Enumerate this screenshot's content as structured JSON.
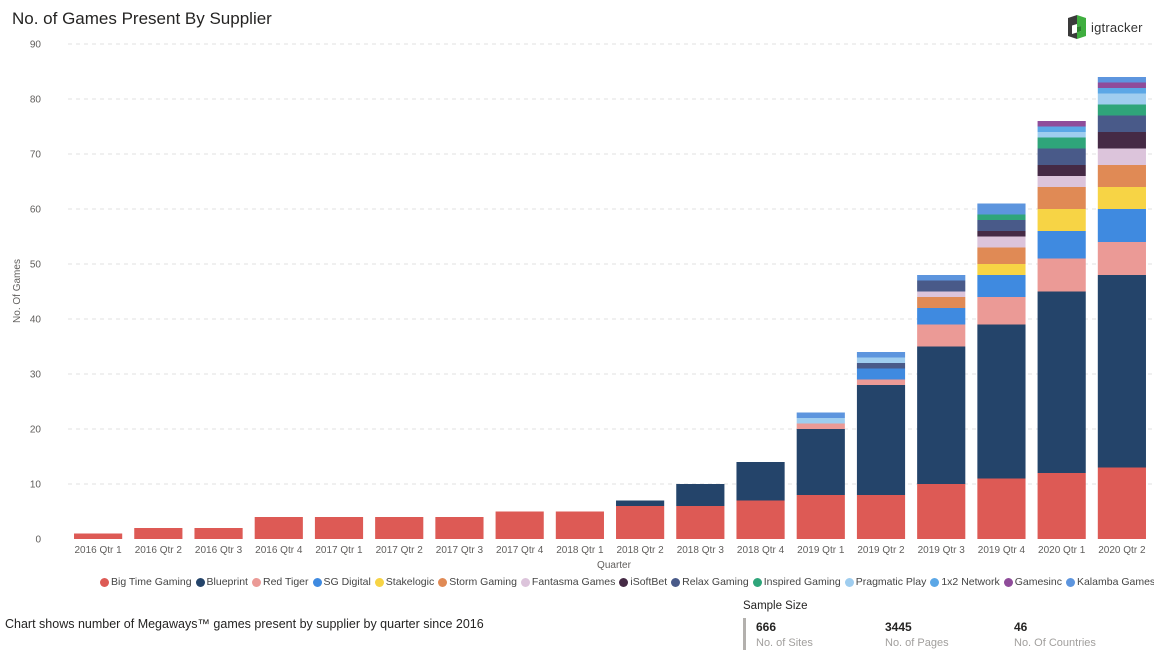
{
  "title": "No. of Games Present By Supplier",
  "logo": {
    "text": "igtracker",
    "icon": "igtracker-logo-icon"
  },
  "footnote": "Chart shows number of Megaways™  games present by supplier by quarter since 2016",
  "sample": {
    "title": "Sample Size",
    "stats": [
      {
        "value": "666",
        "label": "No. of Sites"
      },
      {
        "value": "3445",
        "label": "No. of Pages"
      },
      {
        "value": "46",
        "label": "No. Of Countries"
      }
    ]
  },
  "colors": {
    "Big Time Gaming": "#dd5a55",
    "Blueprint": "#24446a",
    "Red Tiger": "#eb9a96",
    "SG Digital": "#3f8ae0",
    "Stakelogic": "#f7d445",
    "Storm Gaming": "#e08a55",
    "Fantasma Games": "#dcc4db",
    "iSoftBet": "#452a45",
    "Relax Gaming": "#495a89",
    "Inspired Gaming": "#2fa57a",
    "Pragmatic Play": "#9fcdef",
    "1x2 Network": "#5ba7e6",
    "Gamesinc": "#8f4c9a",
    "Kalamba Games": "#5d95de"
  },
  "chart_data": {
    "type": "bar",
    "stacked": true,
    "xlabel": "Quarter",
    "ylabel": "No. Of Games",
    "ylim": [
      0,
      90
    ],
    "yticks": [
      0,
      10,
      20,
      30,
      40,
      50,
      60,
      70,
      80,
      90
    ],
    "grid": true,
    "legend_position": "bottom",
    "categories": [
      "2016 Qtr 1",
      "2016 Qtr 2",
      "2016 Qtr 3",
      "2016 Qtr 4",
      "2017 Qtr 1",
      "2017 Qtr 2",
      "2017 Qtr 3",
      "2017 Qtr 4",
      "2018 Qtr 1",
      "2018 Qtr 2",
      "2018 Qtr 3",
      "2018 Qtr 4",
      "2019 Qtr 1",
      "2019 Qtr 2",
      "2019 Qtr 3",
      "2019 Qtr 4",
      "2020 Qtr 1",
      "2020 Qtr 2"
    ],
    "series": [
      {
        "name": "Big Time Gaming",
        "values": [
          1,
          2,
          2,
          4,
          4,
          4,
          4,
          5,
          5,
          6,
          6,
          7,
          8,
          8,
          10,
          11,
          12,
          13
        ]
      },
      {
        "name": "Blueprint",
        "values": [
          0,
          0,
          0,
          0,
          0,
          0,
          0,
          0,
          0,
          1,
          4,
          7,
          12,
          20,
          25,
          28,
          33,
          35
        ]
      },
      {
        "name": "Red Tiger",
        "values": [
          0,
          0,
          0,
          0,
          0,
          0,
          0,
          0,
          0,
          0,
          0,
          0,
          1,
          1,
          4,
          5,
          6,
          6
        ]
      },
      {
        "name": "SG Digital",
        "values": [
          0,
          0,
          0,
          0,
          0,
          0,
          0,
          0,
          0,
          0,
          0,
          0,
          0,
          2,
          3,
          4,
          5,
          6
        ]
      },
      {
        "name": "Stakelogic",
        "values": [
          0,
          0,
          0,
          0,
          0,
          0,
          0,
          0,
          0,
          0,
          0,
          0,
          0,
          0,
          0,
          2,
          4,
          4
        ]
      },
      {
        "name": "Storm Gaming",
        "values": [
          0,
          0,
          0,
          0,
          0,
          0,
          0,
          0,
          0,
          0,
          0,
          0,
          0,
          0,
          2,
          3,
          4,
          4
        ]
      },
      {
        "name": "Fantasma Games",
        "values": [
          0,
          0,
          0,
          0,
          0,
          0,
          0,
          0,
          0,
          0,
          0,
          0,
          0,
          0,
          1,
          2,
          2,
          3
        ]
      },
      {
        "name": "iSoftBet",
        "values": [
          0,
          0,
          0,
          0,
          0,
          0,
          0,
          0,
          0,
          0,
          0,
          0,
          0,
          0,
          0,
          1,
          2,
          3
        ]
      },
      {
        "name": "Relax Gaming",
        "values": [
          0,
          0,
          0,
          0,
          0,
          0,
          0,
          0,
          0,
          0,
          0,
          0,
          0,
          1,
          2,
          2,
          3,
          3
        ]
      },
      {
        "name": "Inspired Gaming",
        "values": [
          0,
          0,
          0,
          0,
          0,
          0,
          0,
          0,
          0,
          0,
          0,
          0,
          0,
          0,
          0,
          1,
          2,
          2
        ]
      },
      {
        "name": "Pragmatic Play",
        "values": [
          0,
          0,
          0,
          0,
          0,
          0,
          0,
          0,
          0,
          0,
          0,
          0,
          1,
          1,
          0,
          0,
          1,
          2
        ]
      },
      {
        "name": "1x2 Network",
        "values": [
          0,
          0,
          0,
          0,
          0,
          0,
          0,
          0,
          0,
          0,
          0,
          0,
          0,
          0,
          0,
          0,
          1,
          1
        ]
      },
      {
        "name": "Gamesinc",
        "values": [
          0,
          0,
          0,
          0,
          0,
          0,
          0,
          0,
          0,
          0,
          0,
          0,
          0,
          0,
          0,
          0,
          1,
          1
        ]
      },
      {
        "name": "Kalamba Games",
        "values": [
          0,
          0,
          0,
          0,
          0,
          0,
          0,
          0,
          0,
          0,
          0,
          0,
          1,
          1,
          1,
          2,
          0,
          1
        ]
      }
    ]
  }
}
